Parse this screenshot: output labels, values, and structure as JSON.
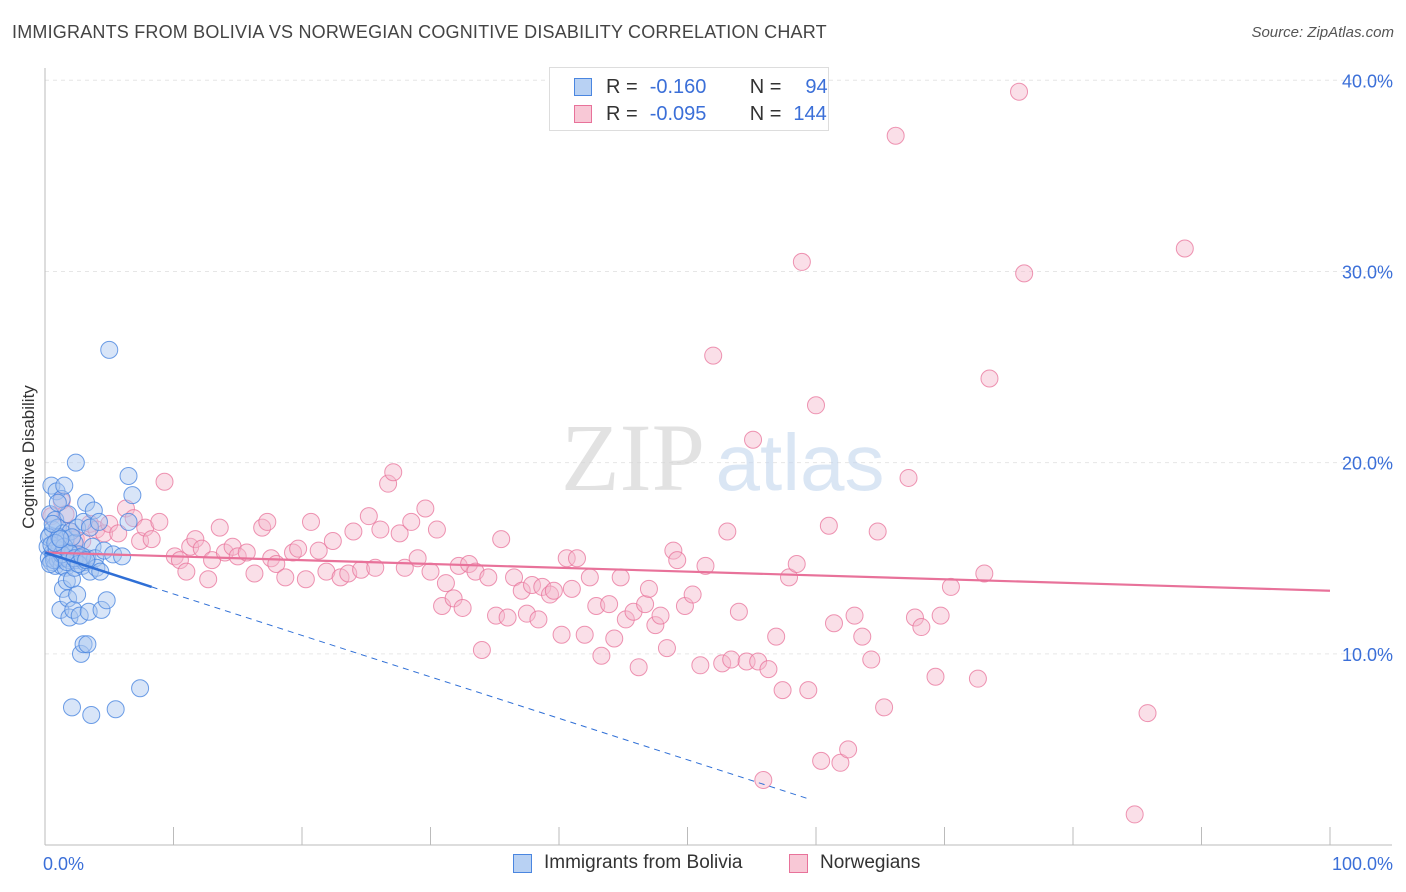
{
  "title": "IMMIGRANTS FROM BOLIVIA VS NORWEGIAN COGNITIVE DISABILITY CORRELATION CHART",
  "source": "Source: ZipAtlas.com",
  "watermark": {
    "zip": "ZIP",
    "atlas": "atlas"
  },
  "legend_top": [
    {
      "r_label": "R =",
      "r_value": "-0.160",
      "n_label": "N =",
      "n_value": "94"
    },
    {
      "r_label": "R =",
      "r_value": "-0.095",
      "n_label": "N =",
      "n_value": "144"
    }
  ],
  "colors": {
    "blue": "#4a86e0",
    "blue_fill": "#a9c6f0",
    "blue_line": "#2f6fd6",
    "pink": "#e8729a",
    "pink_fill": "#f4b8cb",
    "pink_line": "#e8729a",
    "axis_label": "#3b6fd8",
    "grid": "#e6e6e6"
  },
  "chart_data": {
    "type": "scatter",
    "title": "IMMIGRANTS FROM BOLIVIA VS NORWEGIAN COGNITIVE DISABILITY CORRELATION CHART",
    "xlabel": "",
    "ylabel": "Cognitive Disability",
    "x_tick_labels": [
      "0.0%",
      "100.0%"
    ],
    "y_tick_labels": [
      "10.0%",
      "20.0%",
      "30.0%",
      "40.0%"
    ],
    "xlim": [
      0,
      100
    ],
    "ylim": [
      0,
      40.8
    ],
    "y_ticks": [
      10,
      20,
      30,
      40
    ],
    "grid": true,
    "legend_placement": "bottom",
    "series": [
      {
        "name": "Immigrants from Bolivia",
        "color": "#4a86e0",
        "r": -0.16,
        "n": 94,
        "trend": {
          "x0": 0,
          "y0": 15.3,
          "x1": 8.3,
          "y1": 13.5,
          "dashed_to_x": 59.5
        },
        "points": [
          [
            0.2,
            15.6
          ],
          [
            0.3,
            15.0
          ],
          [
            0.4,
            16.2
          ],
          [
            0.4,
            17.3
          ],
          [
            0.5,
            18.8
          ],
          [
            0.5,
            14.8
          ],
          [
            0.6,
            15.3
          ],
          [
            0.6,
            16.5
          ],
          [
            0.7,
            15.1
          ],
          [
            0.8,
            14.6
          ],
          [
            0.8,
            17.0
          ],
          [
            0.9,
            18.5
          ],
          [
            0.9,
            15.9
          ],
          [
            1.0,
            16.6
          ],
          [
            1.0,
            14.9
          ],
          [
            1.1,
            15.4
          ],
          [
            1.2,
            15.0
          ],
          [
            1.2,
            12.3
          ],
          [
            1.3,
            18.1
          ],
          [
            1.3,
            14.6
          ],
          [
            1.4,
            16.3
          ],
          [
            1.4,
            13.4
          ],
          [
            1.5,
            15.1
          ],
          [
            1.5,
            18.8
          ],
          [
            1.6,
            14.5
          ],
          [
            1.6,
            16.0
          ],
          [
            1.7,
            13.8
          ],
          [
            1.7,
            15.0
          ],
          [
            1.8,
            12.9
          ],
          [
            1.8,
            17.3
          ],
          [
            1.9,
            14.9
          ],
          [
            1.9,
            11.9
          ],
          [
            2.0,
            16.4
          ],
          [
            2.0,
            15.2
          ],
          [
            2.1,
            13.9
          ],
          [
            2.1,
            7.2
          ],
          [
            2.2,
            12.3
          ],
          [
            2.3,
            14.5
          ],
          [
            2.3,
            15.8
          ],
          [
            2.4,
            20.0
          ],
          [
            2.4,
            14.9
          ],
          [
            2.5,
            16.6
          ],
          [
            2.5,
            13.1
          ],
          [
            2.6,
            15.2
          ],
          [
            2.7,
            12.0
          ],
          [
            2.8,
            15.0
          ],
          [
            2.8,
            10.0
          ],
          [
            2.9,
            14.6
          ],
          [
            3.0,
            16.9
          ],
          [
            3.0,
            10.5
          ],
          [
            3.1,
            14.8
          ],
          [
            3.2,
            17.9
          ],
          [
            3.3,
            15.0
          ],
          [
            3.3,
            10.5
          ],
          [
            3.4,
            12.2
          ],
          [
            3.5,
            14.3
          ],
          [
            3.5,
            16.6
          ],
          [
            3.6,
            6.8
          ],
          [
            3.7,
            15.6
          ],
          [
            3.8,
            17.5
          ],
          [
            3.9,
            15.0
          ],
          [
            4.0,
            14.5
          ],
          [
            4.2,
            16.9
          ],
          [
            4.3,
            14.3
          ],
          [
            4.4,
            12.3
          ],
          [
            4.6,
            15.4
          ],
          [
            4.8,
            12.8
          ],
          [
            5.0,
            25.9
          ],
          [
            5.3,
            15.2
          ],
          [
            5.5,
            7.1
          ],
          [
            6.0,
            15.1
          ],
          [
            6.5,
            16.9
          ],
          [
            6.5,
            19.3
          ],
          [
            6.8,
            18.3
          ],
          [
            7.4,
            8.2
          ],
          [
            0.3,
            16.1
          ],
          [
            0.5,
            15.7
          ],
          [
            0.7,
            14.9
          ],
          [
            0.9,
            15.5
          ],
          [
            1.1,
            16.1
          ],
          [
            1.3,
            15.2
          ],
          [
            1.5,
            15.6
          ],
          [
            1.7,
            14.8
          ],
          [
            1.9,
            15.3
          ],
          [
            2.1,
            16.1
          ],
          [
            2.3,
            15.0
          ],
          [
            2.6,
            14.7
          ],
          [
            2.9,
            15.1
          ],
          [
            3.2,
            14.9
          ],
          [
            0.4,
            14.7
          ],
          [
            0.6,
            16.8
          ],
          [
            0.8,
            15.8
          ],
          [
            1.0,
            17.9
          ],
          [
            1.2,
            16.0
          ]
        ]
      },
      {
        "name": "Norwegians",
        "color": "#e8729a",
        "r": -0.095,
        "n": 144,
        "trend": {
          "x0": 0,
          "y0": 15.3,
          "x1": 100,
          "y1": 13.3
        },
        "points": [
          [
            0.5,
            17.2
          ],
          [
            1.0,
            16.1
          ],
          [
            1.3,
            18.0
          ],
          [
            1.6,
            17.3
          ],
          [
            2.0,
            16.4
          ],
          [
            2.4,
            16.0
          ],
          [
            2.9,
            15.9
          ],
          [
            3.5,
            16.8
          ],
          [
            4.0,
            16.5
          ],
          [
            4.6,
            16.3
          ],
          [
            5.0,
            16.8
          ],
          [
            5.7,
            16.3
          ],
          [
            6.3,
            17.6
          ],
          [
            6.9,
            17.1
          ],
          [
            7.4,
            15.9
          ],
          [
            7.8,
            16.6
          ],
          [
            8.3,
            16.0
          ],
          [
            8.9,
            16.9
          ],
          [
            9.3,
            19.0
          ],
          [
            10.1,
            15.1
          ],
          [
            10.5,
            14.9
          ],
          [
            11.0,
            14.3
          ],
          [
            11.3,
            15.6
          ],
          [
            11.7,
            16.0
          ],
          [
            12.2,
            15.5
          ],
          [
            12.7,
            13.9
          ],
          [
            13.0,
            14.9
          ],
          [
            13.6,
            16.6
          ],
          [
            14.0,
            15.3
          ],
          [
            14.6,
            15.6
          ],
          [
            15.0,
            15.1
          ],
          [
            15.7,
            15.3
          ],
          [
            16.3,
            14.2
          ],
          [
            16.9,
            16.6
          ],
          [
            17.3,
            16.9
          ],
          [
            17.6,
            15.0
          ],
          [
            18.0,
            14.7
          ],
          [
            18.7,
            14.0
          ],
          [
            19.3,
            15.3
          ],
          [
            19.7,
            15.5
          ],
          [
            20.3,
            13.9
          ],
          [
            20.7,
            16.9
          ],
          [
            21.3,
            15.4
          ],
          [
            21.9,
            14.3
          ],
          [
            22.4,
            15.9
          ],
          [
            23.0,
            14.0
          ],
          [
            23.6,
            14.2
          ],
          [
            24.0,
            16.4
          ],
          [
            24.6,
            14.4
          ],
          [
            25.2,
            17.2
          ],
          [
            25.7,
            14.5
          ],
          [
            26.1,
            16.5
          ],
          [
            26.7,
            18.9
          ],
          [
            27.1,
            19.5
          ],
          [
            27.6,
            16.3
          ],
          [
            28.0,
            14.5
          ],
          [
            28.5,
            16.9
          ],
          [
            29.0,
            15.0
          ],
          [
            29.6,
            17.6
          ],
          [
            30.0,
            14.3
          ],
          [
            30.5,
            16.5
          ],
          [
            30.9,
            12.5
          ],
          [
            31.2,
            13.7
          ],
          [
            31.8,
            12.9
          ],
          [
            32.2,
            14.6
          ],
          [
            32.5,
            12.4
          ],
          [
            33.0,
            14.7
          ],
          [
            33.5,
            14.3
          ],
          [
            34.0,
            10.2
          ],
          [
            34.5,
            14.0
          ],
          [
            35.1,
            12.0
          ],
          [
            35.5,
            16.0
          ],
          [
            36.0,
            11.9
          ],
          [
            36.5,
            14.0
          ],
          [
            37.1,
            13.3
          ],
          [
            37.5,
            12.1
          ],
          [
            37.9,
            13.6
          ],
          [
            38.4,
            11.8
          ],
          [
            38.7,
            13.5
          ],
          [
            39.3,
            13.1
          ],
          [
            39.6,
            13.3
          ],
          [
            40.2,
            11.0
          ],
          [
            40.6,
            15.0
          ],
          [
            41.0,
            13.4
          ],
          [
            41.4,
            15.0
          ],
          [
            42.0,
            11.0
          ],
          [
            42.4,
            14.0
          ],
          [
            42.9,
            12.5
          ],
          [
            43.3,
            9.9
          ],
          [
            43.9,
            12.6
          ],
          [
            44.3,
            10.8
          ],
          [
            44.8,
            14.0
          ],
          [
            45.2,
            11.8
          ],
          [
            45.8,
            12.2
          ],
          [
            46.2,
            9.3
          ],
          [
            46.7,
            12.6
          ],
          [
            47.0,
            13.4
          ],
          [
            47.5,
            11.5
          ],
          [
            47.9,
            12.0
          ],
          [
            48.4,
            10.3
          ],
          [
            48.9,
            15.4
          ],
          [
            49.2,
            14.9
          ],
          [
            49.8,
            12.5
          ],
          [
            50.4,
            13.1
          ],
          [
            51.0,
            9.4
          ],
          [
            51.4,
            14.6
          ],
          [
            52.0,
            25.6
          ],
          [
            52.7,
            9.5
          ],
          [
            53.1,
            16.4
          ],
          [
            53.4,
            9.7
          ],
          [
            54.0,
            12.2
          ],
          [
            54.6,
            9.6
          ],
          [
            55.1,
            21.2
          ],
          [
            55.5,
            9.6
          ],
          [
            55.9,
            3.4
          ],
          [
            56.3,
            9.2
          ],
          [
            56.9,
            10.9
          ],
          [
            57.4,
            8.1
          ],
          [
            57.9,
            14.0
          ],
          [
            58.5,
            14.7
          ],
          [
            58.9,
            30.5
          ],
          [
            59.4,
            8.1
          ],
          [
            60.0,
            23.0
          ],
          [
            60.4,
            4.4
          ],
          [
            61.0,
            16.7
          ],
          [
            61.4,
            11.6
          ],
          [
            61.9,
            4.3
          ],
          [
            62.5,
            5.0
          ],
          [
            63.0,
            12.0
          ],
          [
            63.6,
            10.9
          ],
          [
            64.3,
            9.7
          ],
          [
            64.8,
            16.4
          ],
          [
            65.3,
            7.2
          ],
          [
            66.2,
            37.1
          ],
          [
            67.2,
            19.2
          ],
          [
            67.7,
            11.9
          ],
          [
            68.2,
            11.4
          ],
          [
            69.3,
            8.8
          ],
          [
            70.5,
            13.5
          ],
          [
            72.6,
            8.7
          ],
          [
            73.1,
            14.2
          ],
          [
            73.5,
            24.4
          ],
          [
            75.8,
            39.4
          ],
          [
            76.2,
            29.9
          ],
          [
            84.8,
            1.6
          ],
          [
            85.8,
            6.9
          ],
          [
            88.7,
            31.2
          ],
          [
            69.7,
            12.0
          ]
        ]
      }
    ]
  },
  "bottom_legend": [
    "Immigrants from Bolivia",
    "Norwegians"
  ]
}
